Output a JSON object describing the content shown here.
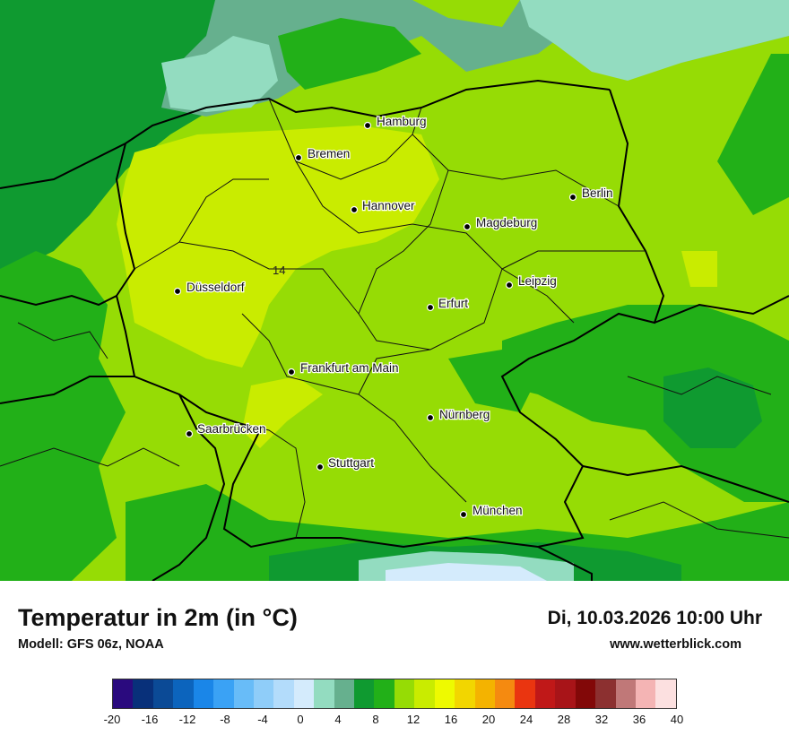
{
  "map": {
    "region": "Deutschland",
    "cities": [
      {
        "name": "Hamburg"
      },
      {
        "name": "Bremen"
      },
      {
        "name": "Hannover"
      },
      {
        "name": "Berlin"
      },
      {
        "name": "Magdeburg"
      },
      {
        "name": "Düsseldorf"
      },
      {
        "name": "Leipzig"
      },
      {
        "name": "Erfurt"
      },
      {
        "name": "Frankfurt am Main"
      },
      {
        "name": "Nürnberg"
      },
      {
        "name": "Saarbrücken"
      },
      {
        "name": "Stuttgart"
      },
      {
        "name": "München"
      }
    ],
    "value_labels": [
      "14"
    ]
  },
  "title": "Temperatur in 2m (in °C)",
  "model": "Modell: GFS 06z, NOAA",
  "datetime": "Di, 10.03.2026 10:00 Uhr",
  "website": "www.wetterblick.com",
  "scale": {
    "colors": [
      "#2a0a7e",
      "#08307a",
      "#0b4a96",
      "#0c64bd",
      "#1a86e8",
      "#3aa2f5",
      "#68bcf8",
      "#8fcdf9",
      "#b3dcfb",
      "#d4ebfc",
      "#93dcc0",
      "#66b08e",
      "#0f9a30",
      "#22b018",
      "#96dc05",
      "#c9ec00",
      "#eefa00",
      "#f2d600",
      "#f4b300",
      "#f58a10",
      "#ea3510",
      "#c01818",
      "#a81418",
      "#820808",
      "#8c3030",
      "#c07878",
      "#f4b4b4",
      "#fce0e0"
    ],
    "ticks": [
      "-20",
      "-16",
      "-12",
      "-8",
      "-4",
      "0",
      "4",
      "8",
      "12",
      "16",
      "20",
      "24",
      "28",
      "32",
      "36",
      "40"
    ]
  }
}
